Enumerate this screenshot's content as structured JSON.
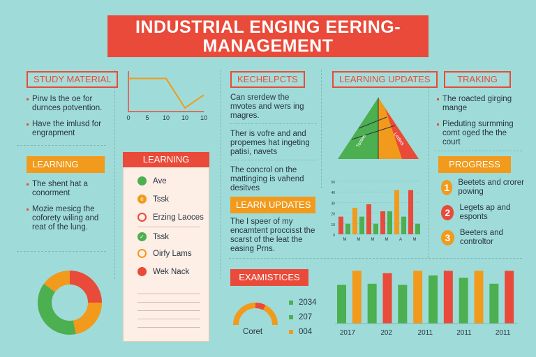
{
  "title": {
    "line1": "INDUSTRIAL ENGING EERING-",
    "line2": "MANAGEMENT"
  },
  "study_material": {
    "label": "STUDY MATERIAL",
    "items": [
      "Pirw Is the oe for durnces potvention.",
      "Have the imlusd for engrapment"
    ]
  },
  "line_chart": {
    "x_ticks": [
      "0",
      "5",
      "10",
      "10",
      "10"
    ],
    "values": [
      18,
      18,
      18,
      2,
      9
    ],
    "ylim": [
      0,
      22
    ]
  },
  "kechelpcts": {
    "label": "KECHELPCTS",
    "items": [
      "Can srerdew the mvotes and wers ing magres.",
      "Ther is vofre and and propemes hat ingeting patisi, navets",
      "The concrol on the mattinging is vahend desitves"
    ]
  },
  "learning_updates": {
    "label": "LEARNING UPDATES",
    "triangle_labels": [
      "Tonlas",
      "Ledeis"
    ]
  },
  "traking": {
    "label": "TRAKING",
    "items": [
      "The roacted girging mange",
      "Pieduting surmming comt oged the the court"
    ]
  },
  "learning_left": {
    "label": "LEARNING",
    "items": [
      "The shent hat a conorment",
      "Mozie mesicg the coforety wiling and reat of the lung."
    ]
  },
  "learning_card": {
    "title": "LEARNING",
    "rows": [
      {
        "label": "Ave",
        "style": "dot",
        "color": "#4caf50"
      },
      {
        "label": "Tssk",
        "style": "dot-mark",
        "color": "#f19a1c"
      },
      {
        "label": "Erzing Laoces",
        "style": "ring",
        "color": "#ea4a39"
      },
      {
        "label": "Tssk",
        "style": "dot",
        "color": "#4caf50"
      },
      {
        "label": "Oirfy Lams",
        "style": "ring",
        "color": "#f19a1c"
      },
      {
        "label": "Wek Nack",
        "style": "dot",
        "color": "#ea4a39"
      }
    ],
    "check_icon": "✓",
    "mark_icon": "e"
  },
  "learn_updates": {
    "label": "LEARN UPDATES",
    "text": "The I speer of my encamtent proccisst the scarst of the leat the easing Prns."
  },
  "progress": {
    "label": "PROGRESS",
    "items": [
      {
        "num": "1",
        "text": "Beetets and crorer powing",
        "color": "#f19a1c"
      },
      {
        "num": "2",
        "text": "Legets ap and esponts",
        "color": "#ea4a39"
      },
      {
        "num": "3",
        "text": "Beeters and controltor",
        "color": "#f19a1c"
      }
    ]
  },
  "small_bar_chart": {
    "type": "bar",
    "y_ticks": [
      "50",
      "40",
      "30",
      "20",
      "10",
      "0"
    ],
    "x_labels": [
      "M",
      "M",
      "M",
      "M",
      "A",
      "M"
    ],
    "ylim": [
      0,
      60
    ],
    "values": [
      {
        "v": 20,
        "c": "#ea4a39"
      },
      {
        "v": 12,
        "c": "#4caf50"
      },
      {
        "v": 30,
        "c": "#f19a1c"
      },
      {
        "v": 20,
        "c": "#4caf50"
      },
      {
        "v": 34,
        "c": "#ea4a39"
      },
      {
        "v": 12,
        "c": "#4caf50"
      },
      {
        "v": 26,
        "c": "#ea4a39"
      },
      {
        "v": 26,
        "c": "#4caf50"
      },
      {
        "v": 50,
        "c": "#f19a1c"
      },
      {
        "v": 20,
        "c": "#4caf50"
      },
      {
        "v": 50,
        "c": "#ea4a39"
      },
      {
        "v": 12,
        "c": "#4caf50"
      }
    ]
  },
  "donut": {
    "segments": [
      {
        "value": 25,
        "color": "#ea4a39"
      },
      {
        "value": 22,
        "color": "#f19a1c"
      },
      {
        "value": 38,
        "color": "#4caf50"
      },
      {
        "value": 15,
        "color": "#f19a1c"
      }
    ]
  },
  "examistices": {
    "label": "EXAMISTICES",
    "gauge_label": "Coret",
    "gauge_value": 0.65,
    "legend": [
      {
        "label": "2034",
        "color": "#4caf50"
      },
      {
        "label": "207",
        "color": "#4caf50"
      },
      {
        "label": "004",
        "color": "#f19a1c"
      }
    ]
  },
  "big_bar_chart": {
    "type": "bar",
    "ylim": [
      0,
      100
    ],
    "values": [
      {
        "v": 66,
        "c": "#4caf50"
      },
      {
        "v": 90,
        "c": "#f19a1c"
      },
      {
        "v": 68,
        "c": "#4caf50"
      },
      {
        "v": 86,
        "c": "#ea4a39"
      },
      {
        "v": 66,
        "c": "#4caf50"
      },
      {
        "v": 90,
        "c": "#f19a1c"
      },
      {
        "v": 82,
        "c": "#4caf50"
      },
      {
        "v": 90,
        "c": "#ea4a39"
      },
      {
        "v": 78,
        "c": "#4caf50"
      },
      {
        "v": 90,
        "c": "#f19a1c"
      },
      {
        "v": 68,
        "c": "#4caf50"
      },
      {
        "v": 90,
        "c": "#ea4a39"
      }
    ],
    "x_labels": [
      "2017",
      "202",
      "2011",
      "2011",
      "2011"
    ]
  }
}
